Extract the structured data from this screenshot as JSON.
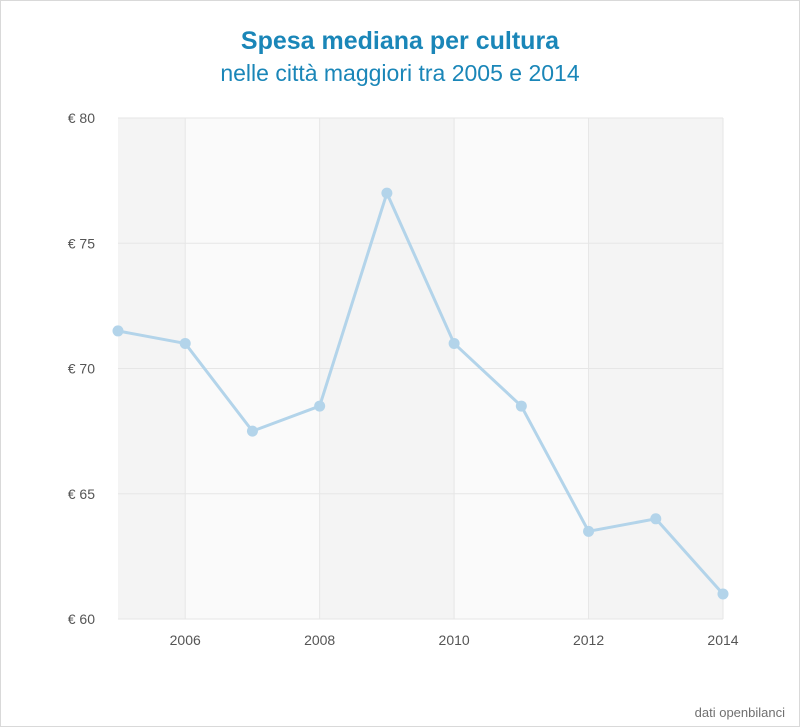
{
  "chart_data": {
    "type": "line",
    "title": "Spesa mediana per cultura",
    "subtitle": "nelle città maggiori tra 2005 e 2014",
    "xlabel": "",
    "ylabel": "",
    "x": [
      2005,
      2006,
      2007,
      2008,
      2009,
      2010,
      2011,
      2012,
      2013,
      2014
    ],
    "series": [
      {
        "values": [
          71.5,
          71.0,
          67.5,
          68.5,
          77.0,
          71.0,
          68.5,
          63.5,
          64.0,
          61.0
        ]
      }
    ],
    "xlim": [
      2005,
      2014
    ],
    "ylim": [
      60,
      80
    ],
    "x_ticks": [
      2006,
      2008,
      2010,
      2012,
      2014
    ],
    "x_tick_labels": [
      "2006",
      "2008",
      "2010",
      "2012",
      "2014"
    ],
    "y_ticks": [
      60,
      65,
      70,
      75,
      80
    ],
    "y_tick_labels": [
      "€ 60",
      "€ 65",
      "€ 70",
      "€ 75",
      "€ 80"
    ],
    "grid": true,
    "legend": "none",
    "colors": {
      "line": "#b3d4ea",
      "title": "#1a86b8",
      "band_dark": "#f4f4f4",
      "band_light": "#fafafa",
      "grid": "#e6e6e6"
    }
  },
  "footer": {
    "source": "dati openbilanci"
  }
}
